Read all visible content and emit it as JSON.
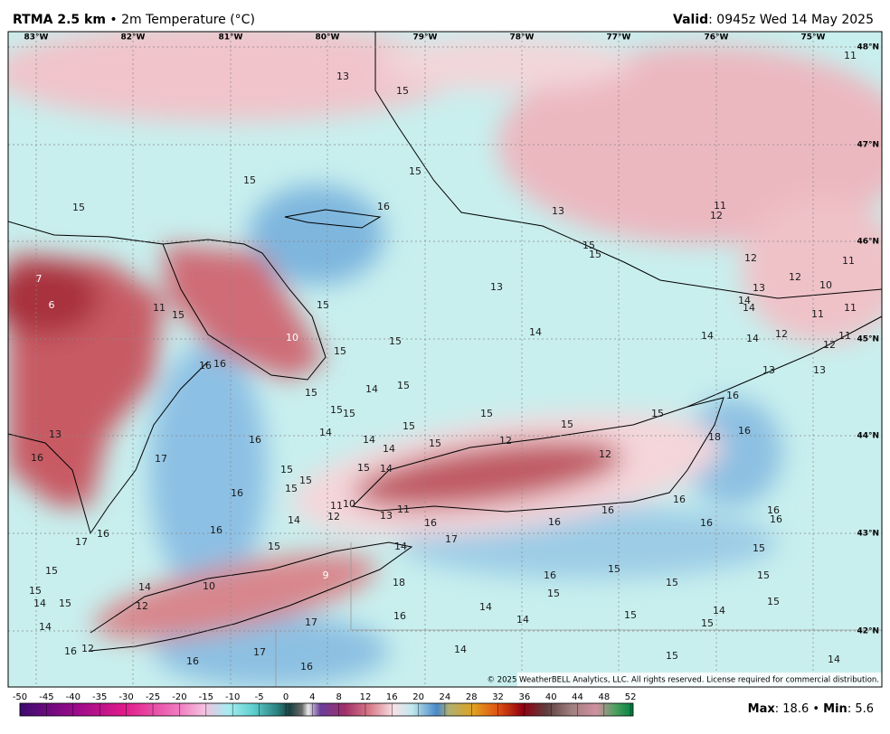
{
  "header": {
    "product": "RTMA 2.5 km",
    "field": " • 2m Temperature (°C)",
    "valid_label": "Valid",
    "valid_value": ": 0945z Wed 14 May 2025"
  },
  "longitudes": [
    "83°W",
    "82°W",
    "81°W",
    "80°W",
    "79°W",
    "78°W",
    "77°W",
    "76°W",
    "75°W"
  ],
  "latitudes": [
    "48°N",
    "47°N",
    "46°N",
    "45°N",
    "44°N",
    "43°N",
    "42°N"
  ],
  "stations": [
    13,
    15,
    11,
    15,
    15,
    16,
    13,
    11,
    12,
    15,
    15,
    15,
    12,
    12,
    10,
    11,
    7,
    6,
    13,
    13,
    14,
    14,
    11,
    11,
    11,
    15,
    15,
    10,
    14,
    15,
    14,
    14,
    12,
    11,
    12,
    15,
    16,
    16,
    13,
    13,
    14,
    15,
    15,
    16,
    15,
    15,
    15,
    15,
    15,
    15,
    14,
    13,
    16,
    14,
    15,
    12,
    18,
    16,
    14,
    16,
    17,
    12,
    15,
    15,
    14,
    15,
    15,
    16,
    16,
    11,
    10,
    11,
    13,
    12,
    16,
    16,
    16,
    14,
    16,
    16,
    16,
    16,
    17,
    16,
    17,
    14,
    15,
    15,
    15,
    9,
    16,
    15,
    15,
    15,
    18,
    15,
    14,
    10,
    15,
    15,
    14,
    15,
    12,
    14,
    14,
    15,
    16,
    14,
    17,
    15,
    14,
    14,
    17,
    12,
    16,
    15,
    14,
    16,
    16
  ],
  "copyright": "© 2025 WeatherBELL Analytics, LLC. All rights reserved. License required for commercial distribution.",
  "colorbar": {
    "ticks": [
      -50,
      -45,
      -40,
      -35,
      -30,
      -25,
      -20,
      -15,
      -10,
      -5,
      0,
      4,
      8,
      12,
      16,
      20,
      24,
      28,
      32,
      36,
      40,
      44,
      48,
      52
    ]
  },
  "stats": {
    "max_label": "Max",
    "max_value": ": 18.6 • ",
    "min_label": "Min",
    "min_value": ": 5.6"
  }
}
